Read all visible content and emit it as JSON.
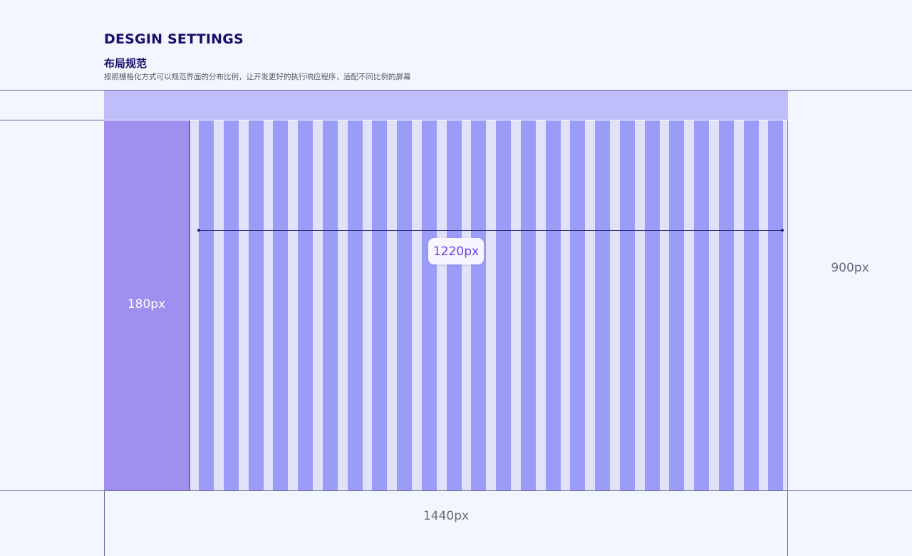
{
  "header": {
    "title": "DESGIN SETTINGS",
    "subtitle": "布局规范",
    "description": "按照栅格化方式可以规范界面的分布比例，让开发更好的执行响应程序，适配不同比例的屏幕"
  },
  "layout": {
    "sidebar_width_label": "180px",
    "content_width_label": "1220px",
    "page_height_label": "900px",
    "page_width_label": "1440px",
    "grid_columns": 24
  },
  "colors": {
    "background": "#f2f6fe",
    "title": "#1a0d6b",
    "header_band": "#c0befa",
    "sidebar": "#a18ff0",
    "grid_column": "#9b9cf8",
    "grid_gutter": "#e2e1fa",
    "measure_text": "#6a3df0"
  }
}
